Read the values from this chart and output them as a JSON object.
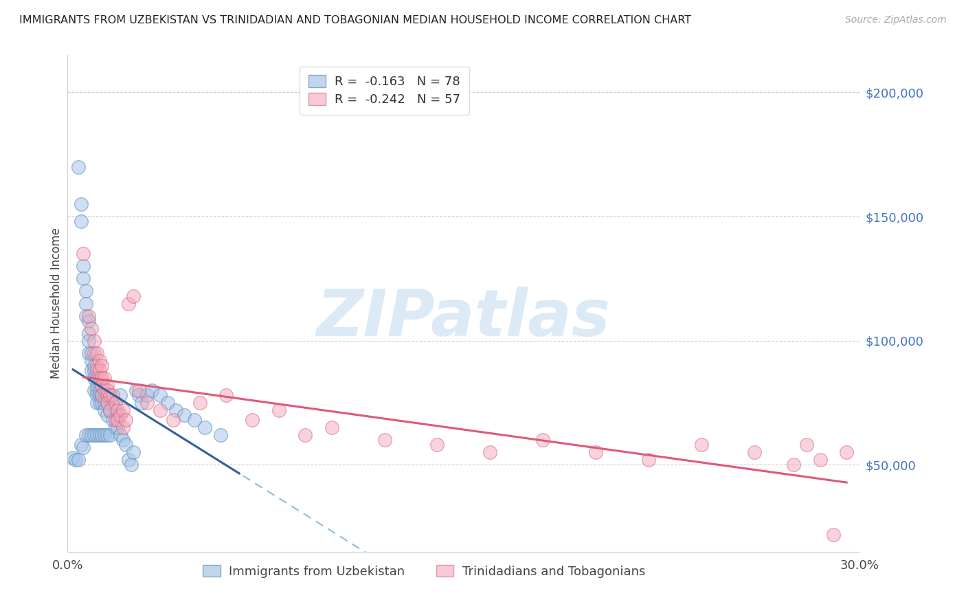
{
  "title": "IMMIGRANTS FROM UZBEKISTAN VS TRINIDADIAN AND TOBAGONIAN MEDIAN HOUSEHOLD INCOME CORRELATION CHART",
  "source": "Source: ZipAtlas.com",
  "ylabel": "Median Household Income",
  "y_tick_labels": [
    "$50,000",
    "$100,000",
    "$150,000",
    "$200,000"
  ],
  "y_tick_values": [
    50000,
    100000,
    150000,
    200000
  ],
  "ylim": [
    15000,
    215000
  ],
  "xlim": [
    0.0,
    0.3
  ],
  "legend_entry_blue": "R =  -0.163   N = 78",
  "legend_entry_pink": "R =  -0.242   N = 57",
  "legend_label_blue": "Immigrants from Uzbekistan",
  "legend_label_pink": "Trinidadians and Tobagonians",
  "blue_fill": "#a8c4e8",
  "blue_edge": "#5b8db8",
  "pink_fill": "#f4a8b8",
  "pink_edge": "#d06080",
  "blue_line_color": "#3060a0",
  "pink_line_color": "#e05878",
  "blue_dash_color": "#90bcd8",
  "watermark": "ZIPatlas",
  "blue_scatter_x": [
    0.002,
    0.003,
    0.004,
    0.004,
    0.005,
    0.005,
    0.005,
    0.006,
    0.006,
    0.006,
    0.007,
    0.007,
    0.007,
    0.007,
    0.008,
    0.008,
    0.008,
    0.008,
    0.008,
    0.009,
    0.009,
    0.009,
    0.009,
    0.01,
    0.01,
    0.01,
    0.01,
    0.01,
    0.011,
    0.011,
    0.011,
    0.011,
    0.011,
    0.011,
    0.012,
    0.012,
    0.012,
    0.012,
    0.013,
    0.013,
    0.013,
    0.013,
    0.014,
    0.014,
    0.014,
    0.014,
    0.015,
    0.015,
    0.015,
    0.015,
    0.016,
    0.016,
    0.016,
    0.017,
    0.017,
    0.018,
    0.018,
    0.019,
    0.019,
    0.02,
    0.02,
    0.021,
    0.022,
    0.023,
    0.024,
    0.025,
    0.026,
    0.027,
    0.028,
    0.03,
    0.032,
    0.035,
    0.038,
    0.041,
    0.044,
    0.048,
    0.052,
    0.058
  ],
  "blue_scatter_y": [
    53000,
    52000,
    170000,
    52000,
    155000,
    148000,
    58000,
    130000,
    125000,
    57000,
    120000,
    115000,
    110000,
    62000,
    108000,
    103000,
    100000,
    62000,
    95000,
    92000,
    95000,
    62000,
    88000,
    88000,
    90000,
    85000,
    80000,
    62000,
    85000,
    82000,
    80000,
    78000,
    75000,
    62000,
    80000,
    78000,
    75000,
    62000,
    82000,
    78000,
    75000,
    62000,
    78000,
    75000,
    72000,
    62000,
    78000,
    75000,
    70000,
    62000,
    78000,
    72000,
    62000,
    75000,
    68000,
    72000,
    65000,
    70000,
    65000,
    78000,
    62000,
    60000,
    58000,
    52000,
    50000,
    55000,
    80000,
    78000,
    75000,
    78000,
    80000,
    78000,
    75000,
    72000,
    70000,
    68000,
    65000,
    62000
  ],
  "pink_scatter_x": [
    0.006,
    0.008,
    0.009,
    0.01,
    0.01,
    0.011,
    0.011,
    0.011,
    0.012,
    0.012,
    0.012,
    0.013,
    0.013,
    0.013,
    0.013,
    0.014,
    0.014,
    0.015,
    0.015,
    0.015,
    0.015,
    0.016,
    0.016,
    0.017,
    0.018,
    0.018,
    0.019,
    0.019,
    0.02,
    0.021,
    0.021,
    0.022,
    0.023,
    0.025,
    0.027,
    0.03,
    0.035,
    0.04,
    0.05,
    0.06,
    0.07,
    0.08,
    0.09,
    0.1,
    0.12,
    0.14,
    0.16,
    0.18,
    0.2,
    0.22,
    0.24,
    0.26,
    0.275,
    0.285,
    0.29,
    0.295,
    0.28
  ],
  "pink_scatter_y": [
    135000,
    110000,
    105000,
    100000,
    95000,
    95000,
    90000,
    88000,
    92000,
    88000,
    85000,
    90000,
    85000,
    82000,
    78000,
    85000,
    80000,
    82000,
    78000,
    75000,
    80000,
    78000,
    72000,
    78000,
    75000,
    68000,
    72000,
    68000,
    70000,
    72000,
    65000,
    68000,
    115000,
    118000,
    80000,
    75000,
    72000,
    68000,
    75000,
    78000,
    68000,
    72000,
    62000,
    65000,
    60000,
    58000,
    55000,
    60000,
    55000,
    52000,
    58000,
    55000,
    50000,
    52000,
    22000,
    55000,
    58000
  ]
}
